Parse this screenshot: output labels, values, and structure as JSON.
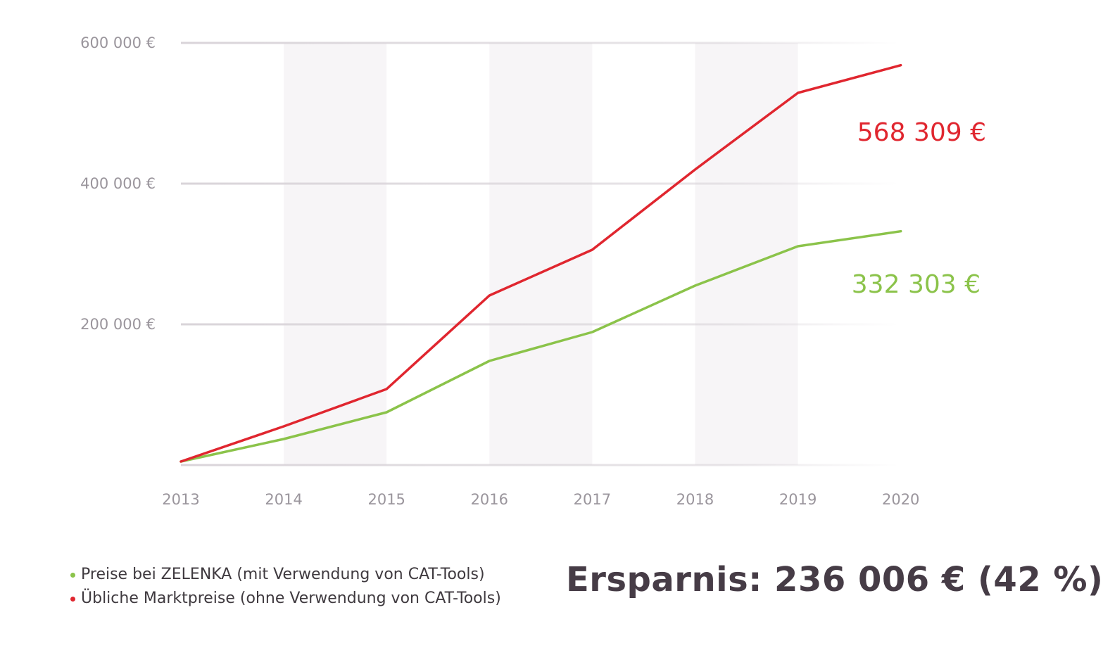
{
  "colors": {
    "green": "#8bc34a",
    "red": "#e0262f",
    "grid": "#d9d4d9",
    "band": "#f7f5f7",
    "text": "#463c46",
    "tick": "#9a959c"
  },
  "chart_data": {
    "type": "line",
    "title": "",
    "xlabel": "",
    "ylabel": "",
    "x": [
      "2013",
      "2014",
      "2015",
      "2016",
      "2017",
      "2018",
      "2019",
      "2020"
    ],
    "ylim": [
      0,
      600000
    ],
    "yticks": [
      {
        "value": 200000,
        "label": "200 000 €"
      },
      {
        "value": 400000,
        "label": "400 000 €"
      },
      {
        "value": 600000,
        "label": "600 000 €"
      }
    ],
    "grid": true,
    "shaded_years": [
      [
        "2014",
        "2015"
      ],
      [
        "2016",
        "2017"
      ],
      [
        "2018",
        "2019"
      ]
    ],
    "series": [
      {
        "name": "Preise bei ZELENKA (mit Verwendung von CAT-Tools)",
        "color": "#8bc34a",
        "values": [
          5000,
          37000,
          75000,
          148000,
          189000,
          255000,
          311000,
          332303
        ],
        "end_label": "332 303 €"
      },
      {
        "name": "Übliche Marktpreise (ohne Verwendung von CAT-Tools)",
        "color": "#e0262f",
        "values": [
          5000,
          55000,
          108000,
          241000,
          306000,
          420000,
          529000,
          568309
        ],
        "end_label": "568 309 €"
      }
    ],
    "legend_position": "bottom-left"
  },
  "summary": {
    "savings_text": "Ersparnis: 236 006 € (42 %)"
  }
}
